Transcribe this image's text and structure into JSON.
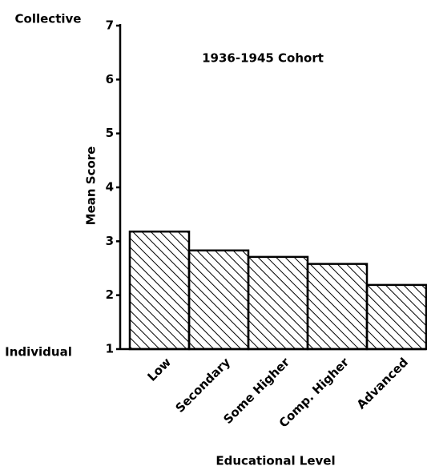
{
  "chart_data": {
    "type": "bar",
    "title": "1936-1945 Cohort",
    "y_label": "Mean Score",
    "x_label": "Educational Level",
    "annotations": [
      "Collective",
      "Individual"
    ],
    "categories": [
      "Low",
      "Secondary",
      "Some Higher",
      "Comp. Higher",
      "Advanced"
    ],
    "values": [
      3.18,
      2.83,
      2.71,
      2.58,
      2.19
    ],
    "color": "#000000",
    "ylim": [
      1,
      7
    ],
    "yticks": [
      1,
      2,
      3,
      4,
      5,
      6,
      7
    ],
    "grid": false
  }
}
